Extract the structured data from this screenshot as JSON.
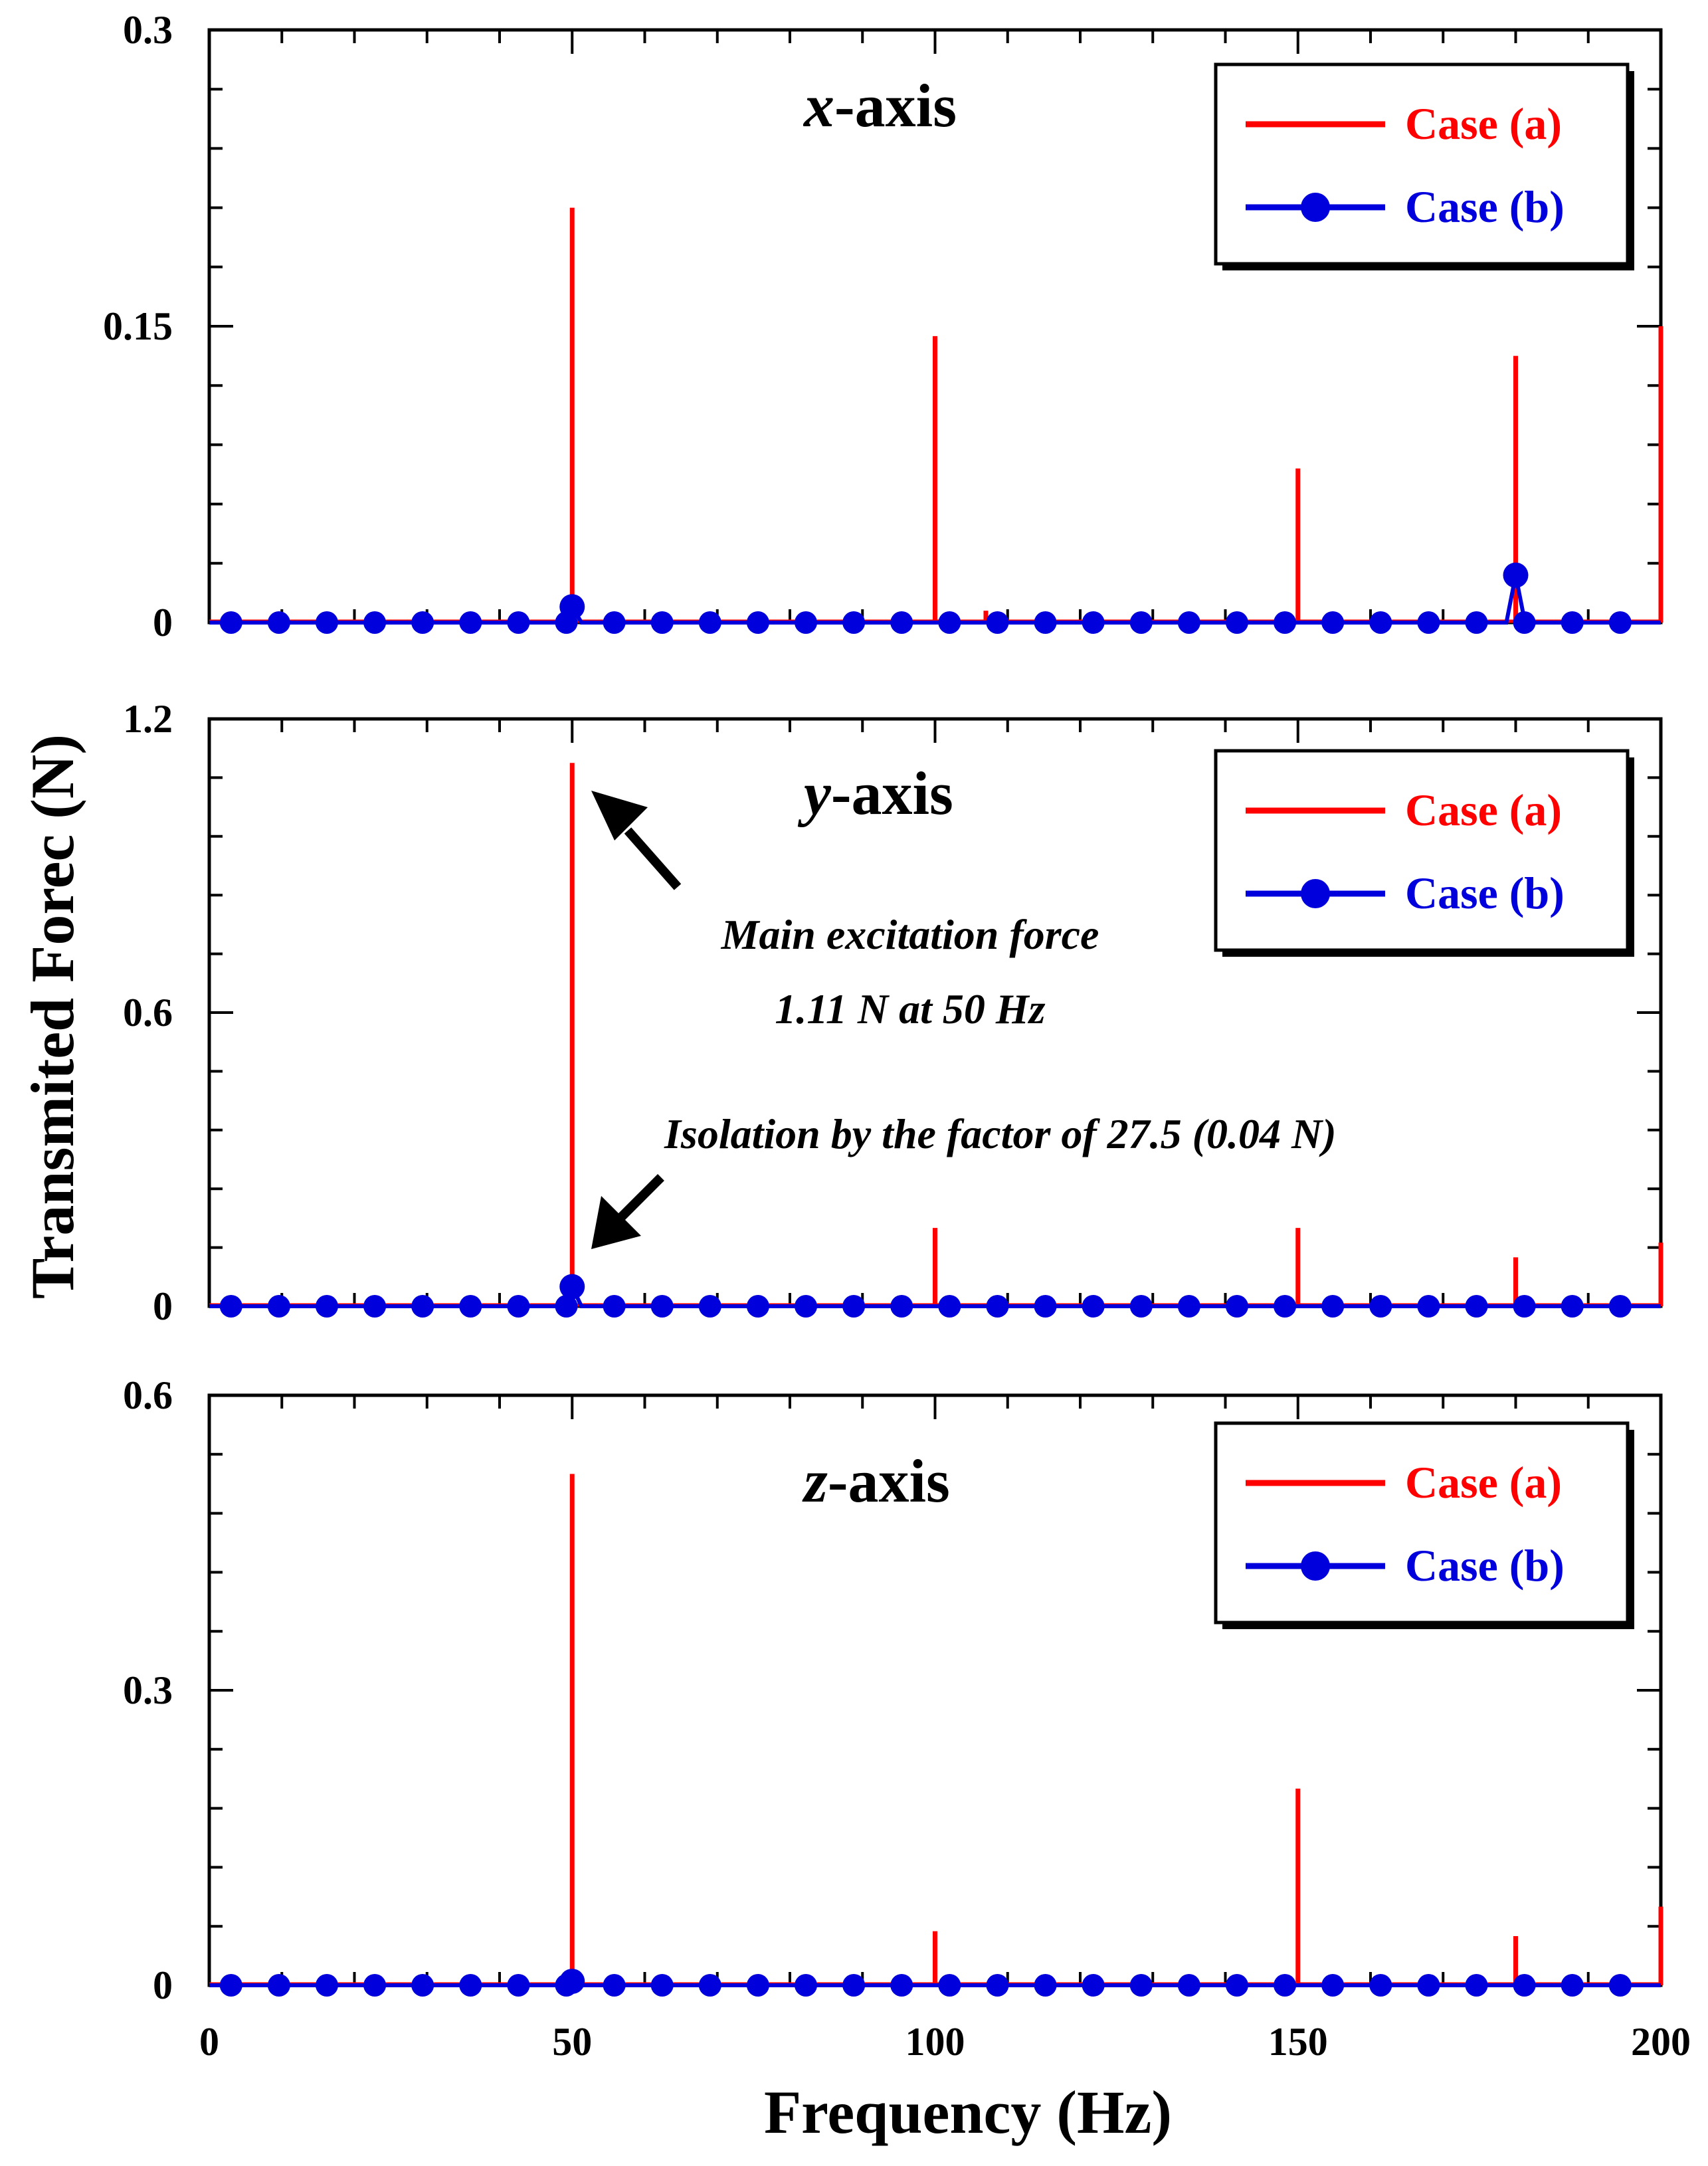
{
  "chart_data": {
    "type": "line",
    "xlabel": "Frequency (Hz)",
    "ylabel": "Transmited Forec (N)",
    "xlim": [
      0,
      200
    ],
    "xticks": [
      0,
      50,
      100,
      150,
      200
    ],
    "series_colors": {
      "case_a": "#ff0000",
      "case_b": "#0000dd"
    },
    "legend": [
      "Case (a)",
      "Case (b)"
    ],
    "panels": [
      {
        "title_var": "x",
        "title_rest": "-axis",
        "ylim": [
          0,
          0.3
        ],
        "yticks": [
          0,
          0.15,
          0.3
        ],
        "ytick_labels": [
          "0",
          "0.15",
          "0.3"
        ],
        "case_a_peaks": [
          {
            "x": 50,
            "y": 0.21
          },
          {
            "x": 100,
            "y": 0.145
          },
          {
            "x": 107,
            "y": 0.006
          },
          {
            "x": 150,
            "y": 0.078
          },
          {
            "x": 180,
            "y": 0.135
          },
          {
            "x": 200,
            "y": 0.15
          }
        ],
        "case_b_points": [
          {
            "x": 50,
            "y": 0.008
          },
          {
            "x": 180,
            "y": 0.024
          }
        ]
      },
      {
        "title_var": "y",
        "title_rest": "-axis",
        "ylim": [
          0,
          1.2
        ],
        "yticks": [
          0,
          0.6,
          1.2
        ],
        "ytick_labels": [
          "0",
          "0.6",
          "1.2"
        ],
        "case_a_peaks": [
          {
            "x": 50,
            "y": 1.11
          },
          {
            "x": 100,
            "y": 0.16
          },
          {
            "x": 150,
            "y": 0.16
          },
          {
            "x": 180,
            "y": 0.1
          },
          {
            "x": 200,
            "y": 0.13
          }
        ],
        "case_b_points": [
          {
            "x": 50,
            "y": 0.04
          }
        ],
        "annotations": [
          {
            "lines": [
              "Main excitation force",
              "1.11 N at 50 Hz"
            ]
          },
          {
            "lines": [
              "Isolation by the factor of 27.5 (0.04 N)"
            ]
          }
        ]
      },
      {
        "title_var": "z",
        "title_rest": "-axis",
        "ylim": [
          0,
          0.6
        ],
        "yticks": [
          0,
          0.3,
          0.6
        ],
        "ytick_labels": [
          "0",
          "0.3",
          "0.6"
        ],
        "case_a_peaks": [
          {
            "x": 50,
            "y": 0.52
          },
          {
            "x": 100,
            "y": 0.055
          },
          {
            "x": 150,
            "y": 0.2
          },
          {
            "x": 180,
            "y": 0.05
          },
          {
            "x": 200,
            "y": 0.08
          }
        ],
        "case_b_points": [
          {
            "x": 50,
            "y": 0.004
          }
        ]
      }
    ]
  }
}
